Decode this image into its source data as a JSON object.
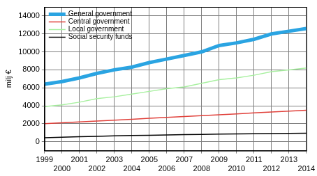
{
  "chart_data": {
    "type": "line",
    "y_label": "milj €",
    "categories": [
      "1999",
      "2000",
      "2001",
      "2002",
      "2003",
      "2004",
      "2005",
      "2006",
      "2007",
      "2008",
      "2009",
      "2010",
      "2011",
      "2012",
      "2013",
      "2014"
    ],
    "series": [
      {
        "name": "General government",
        "color": "#2aa4e2",
        "values": [
          6400,
          6700,
          7100,
          7600,
          8000,
          8300,
          8800,
          9200,
          9600,
          10000,
          10700,
          11000,
          11400,
          12000,
          12300,
          12600
        ]
      },
      {
        "name": "Central government",
        "color": "#e0403a",
        "values": [
          2000,
          2100,
          2200,
          2300,
          2400,
          2500,
          2600,
          2700,
          2800,
          2900,
          3000,
          3100,
          3200,
          3300,
          3400,
          3500
        ]
      },
      {
        "name": "Local government",
        "color": "#a8f0a0",
        "values": [
          3900,
          4100,
          4400,
          4800,
          5000,
          5300,
          5600,
          5900,
          6100,
          6500,
          6900,
          7100,
          7400,
          7800,
          8000,
          8200
        ]
      },
      {
        "name": "Social security funds",
        "color": "#000000",
        "values": [
          450,
          500,
          550,
          600,
          650,
          700,
          720,
          750,
          780,
          800,
          850,
          870,
          880,
          900,
          920,
          950
        ]
      }
    ],
    "ylim": [
      -1000,
      15000
    ],
    "yticks": [
      0,
      2000,
      4000,
      6000,
      8000,
      10000,
      12000,
      14000
    ],
    "grid": true,
    "legend": "upper left"
  }
}
